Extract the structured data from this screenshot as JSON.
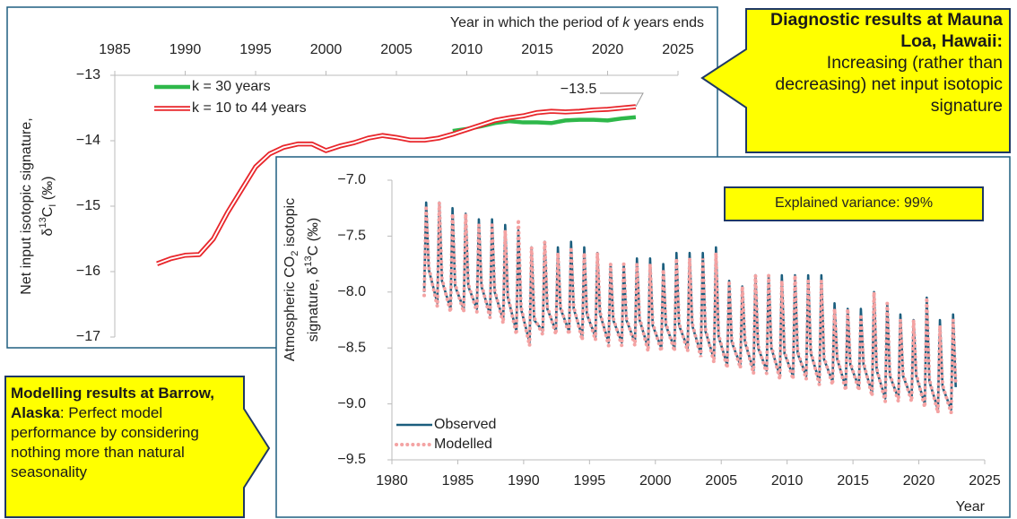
{
  "chart_data": [
    {
      "type": "line",
      "x_label": [
        "Year in which the period of ",
        "k",
        " years ends"
      ],
      "y_label": [
        [
          "Net input isotopic signature,"
        ],
        [
          "δ",
          "13",
          "C",
          "I",
          " (‰)"
        ]
      ],
      "xaxis_position": "top",
      "xlim": [
        1985,
        2025
      ],
      "xticks": [
        1985,
        1990,
        1995,
        2000,
        2005,
        2010,
        2015,
        2020,
        2025
      ],
      "ylim": [
        -17,
        -13
      ],
      "yticks": [
        {
          "value": -13,
          "label": "−13"
        },
        {
          "value": -14,
          "label": "−14"
        },
        {
          "value": -15,
          "label": "−15"
        },
        {
          "value": -16,
          "label": "−16"
        },
        {
          "value": -17,
          "label": "−17"
        }
      ],
      "legend": "upper left",
      "x": [
        1988,
        1989,
        1990,
        1991,
        1992,
        1993,
        1994,
        1995,
        1996,
        1997,
        1998,
        1999,
        2000,
        2001,
        2002,
        2003,
        2004,
        2005,
        2006,
        2007,
        2008,
        2009,
        2010,
        2011,
        2012,
        2013,
        2014,
        2015,
        2016,
        2017,
        2018,
        2019,
        2020,
        2021,
        2022
      ],
      "series": [
        {
          "name": "k = 30 years",
          "color": "#2eb84a",
          "style": "solid",
          "values": [
            null,
            null,
            null,
            null,
            null,
            null,
            null,
            null,
            null,
            null,
            null,
            null,
            null,
            null,
            null,
            null,
            null,
            null,
            null,
            null,
            null,
            -13.85,
            -13.82,
            -13.78,
            -13.73,
            -13.7,
            -13.72,
            -13.72,
            -13.73,
            -13.69,
            -13.68,
            -13.68,
            -13.69,
            -13.66,
            -13.64
          ]
        },
        {
          "name": "k = 10 to 44 years",
          "color": "#e8262b",
          "style": "double",
          "values": [
            -15.88,
            -15.8,
            -15.75,
            -15.74,
            -15.5,
            -15.1,
            -14.75,
            -14.4,
            -14.2,
            -14.1,
            -14.05,
            -14.05,
            -14.15,
            -14.08,
            -14.03,
            -13.96,
            -13.92,
            -13.95,
            -13.99,
            -13.99,
            -13.96,
            -13.9,
            -13.83,
            -13.76,
            -13.69,
            -13.65,
            -13.62,
            -13.57,
            -13.55,
            -13.56,
            -13.55,
            -13.53,
            -13.52,
            -13.5,
            -13.48
          ]
        }
      ],
      "annotations": [
        {
          "text": "−13.5"
        }
      ]
    },
    {
      "type": "line",
      "x_label": [
        "Year"
      ],
      "y_label": [
        [
          "Atmospheric CO",
          "2",
          " isotopic"
        ],
        [
          "signature, δ",
          "13",
          "C (‰)"
        ]
      ],
      "xaxis_position": "bottom",
      "xlim": [
        1980,
        2025
      ],
      "xticks": [
        1980,
        1985,
        1990,
        1995,
        2000,
        2005,
        2010,
        2015,
        2020,
        2025
      ],
      "ylim": [
        -9.5,
        -7.0
      ],
      "yticks": [
        {
          "value": -7.0,
          "label": "−7.0"
        },
        {
          "value": -7.5,
          "label": "−7.5"
        },
        {
          "value": -8.0,
          "label": "−8.0"
        },
        {
          "value": -8.5,
          "label": "−8.5"
        },
        {
          "value": -9.0,
          "label": "−9.0"
        },
        {
          "value": -9.5,
          "label": "−9.5"
        }
      ],
      "legend": "lower left",
      "x": [
        1982.45,
        1982.6,
        1982.8,
        1983.45,
        1983.6,
        1983.8,
        1984.45,
        1984.6,
        1984.8,
        1985.45,
        1985.6,
        1985.8,
        1986.45,
        1986.6,
        1986.8,
        1987.45,
        1987.6,
        1987.8,
        1988.45,
        1988.6,
        1988.8,
        1989.45,
        1989.6,
        1989.8,
        1990.45,
        1990.6,
        1990.8,
        1991.45,
        1991.6,
        1991.8,
        1992.45,
        1992.6,
        1992.8,
        1993.45,
        1993.6,
        1993.8,
        1994.45,
        1994.6,
        1994.8,
        1995.45,
        1995.6,
        1995.8,
        1996.45,
        1996.6,
        1996.8,
        1997.45,
        1997.6,
        1997.8,
        1998.45,
        1998.6,
        1998.8,
        1999.45,
        1999.6,
        1999.8,
        2000.45,
        2000.6,
        2000.8,
        2001.45,
        2001.6,
        2001.8,
        2002.45,
        2002.6,
        2002.8,
        2003.45,
        2003.6,
        2003.8,
        2004.45,
        2004.6,
        2004.8,
        2005.45,
        2005.6,
        2005.8,
        2006.45,
        2006.6,
        2006.8,
        2007.45,
        2007.6,
        2007.8,
        2008.45,
        2008.6,
        2008.8,
        2009.45,
        2009.6,
        2009.8,
        2010.45,
        2010.6,
        2010.8,
        2011.45,
        2011.6,
        2011.8,
        2012.45,
        2012.6,
        2012.8,
        2013.45,
        2013.6,
        2013.8,
        2014.45,
        2014.6,
        2014.8,
        2015.45,
        2015.6,
        2015.8,
        2016.45,
        2016.6,
        2016.8,
        2017.45,
        2017.6,
        2017.8,
        2018.45,
        2018.6,
        2018.8,
        2019.45,
        2019.6,
        2019.8,
        2020.45,
        2020.6,
        2020.8,
        2021.45,
        2021.6,
        2021.8,
        2022.45,
        2022.6,
        2022.8
      ],
      "series": [
        {
          "name": "Observed",
          "color": "#1b5e7e",
          "style": "solid",
          "values": [
            -8.0,
            -7.2,
            -7.8,
            -8.1,
            -7.2,
            -7.9,
            -8.15,
            -7.25,
            -7.95,
            -8.15,
            -7.3,
            -7.95,
            -8.15,
            -7.35,
            -7.95,
            -8.2,
            -7.35,
            -8.0,
            -8.25,
            -7.4,
            -8.05,
            -8.35,
            -7.45,
            -8.15,
            -8.45,
            -7.6,
            -8.25,
            -8.35,
            -7.55,
            -8.15,
            -8.35,
            -7.6,
            -8.15,
            -8.35,
            -7.55,
            -8.15,
            -8.4,
            -7.6,
            -8.2,
            -8.4,
            -7.65,
            -8.2,
            -8.45,
            -7.75,
            -8.25,
            -8.45,
            -7.75,
            -8.25,
            -8.45,
            -7.7,
            -8.25,
            -8.5,
            -7.7,
            -8.3,
            -8.5,
            -7.75,
            -8.3,
            -8.5,
            -7.65,
            -8.3,
            -8.5,
            -7.65,
            -8.3,
            -8.55,
            -7.65,
            -8.35,
            -8.6,
            -7.6,
            -8.4,
            -8.65,
            -7.9,
            -8.45,
            -8.65,
            -7.95,
            -8.45,
            -8.7,
            -7.85,
            -8.5,
            -8.7,
            -7.85,
            -8.5,
            -8.75,
            -7.85,
            -8.55,
            -8.75,
            -7.85,
            -8.55,
            -8.75,
            -7.85,
            -8.55,
            -8.8,
            -7.85,
            -8.6,
            -8.8,
            -8.1,
            -8.6,
            -8.85,
            -8.15,
            -8.65,
            -8.85,
            -8.15,
            -8.65,
            -8.9,
            -8.0,
            -8.7,
            -8.95,
            -8.1,
            -8.75,
            -8.95,
            -8.2,
            -8.75,
            -8.95,
            -8.25,
            -8.75,
            -9.0,
            -8.05,
            -8.8,
            -9.05,
            -8.25,
            -8.85,
            -9.05,
            -8.2,
            -8.85
          ]
        },
        {
          "name": "Modelled",
          "color": "#f4a3a3",
          "style": "dotted",
          "values": [
            -8.03,
            -7.25,
            -7.78,
            -8.13,
            -7.2,
            -7.88,
            -8.18,
            -7.3,
            -7.93,
            -8.18,
            -7.3,
            -7.93,
            -8.18,
            -7.4,
            -7.93,
            -8.23,
            -7.4,
            -7.98,
            -8.28,
            -7.45,
            -8.03,
            -8.38,
            -7.35,
            -8.13,
            -8.48,
            -7.6,
            -8.23,
            -8.38,
            -7.55,
            -8.13,
            -8.38,
            -7.65,
            -8.13,
            -8.38,
            -7.6,
            -8.13,
            -8.43,
            -7.65,
            -8.18,
            -8.43,
            -7.65,
            -8.18,
            -8.48,
            -7.75,
            -8.23,
            -8.48,
            -7.75,
            -8.23,
            -8.48,
            -7.75,
            -8.23,
            -8.53,
            -7.75,
            -8.28,
            -8.53,
            -7.8,
            -8.28,
            -8.53,
            -7.7,
            -8.28,
            -8.53,
            -7.7,
            -8.28,
            -8.58,
            -7.7,
            -8.33,
            -8.63,
            -7.65,
            -8.38,
            -8.68,
            -7.9,
            -8.43,
            -8.68,
            -7.95,
            -8.43,
            -8.73,
            -7.85,
            -8.48,
            -8.73,
            -7.85,
            -8.48,
            -8.78,
            -7.9,
            -8.53,
            -8.78,
            -7.85,
            -8.53,
            -8.78,
            -7.9,
            -8.53,
            -8.83,
            -7.9,
            -8.58,
            -8.83,
            -8.15,
            -8.58,
            -8.88,
            -8.15,
            -8.63,
            -8.88,
            -8.2,
            -8.63,
            -8.93,
            -8.0,
            -8.68,
            -8.98,
            -8.1,
            -8.73,
            -8.98,
            -8.25,
            -8.73,
            -8.98,
            -8.25,
            -8.73,
            -9.03,
            -8.05,
            -8.78,
            -9.08,
            -8.3,
            -8.83,
            -9.08,
            -8.25,
            -8.83
          ]
        }
      ],
      "annotations": [
        {
          "text": "Explained variance: 99%"
        }
      ]
    }
  ],
  "callouts": [
    {
      "bold": "Diagnostic results at Mauna Loa, Hawaii:",
      "text": "Increasing  (rather than decreasing) net input isotopic signature"
    },
    {
      "bold": "Modelling results at Barrow, Alaska",
      "text": ": Perfect model performance by considering nothing more than natural seasonality"
    }
  ]
}
